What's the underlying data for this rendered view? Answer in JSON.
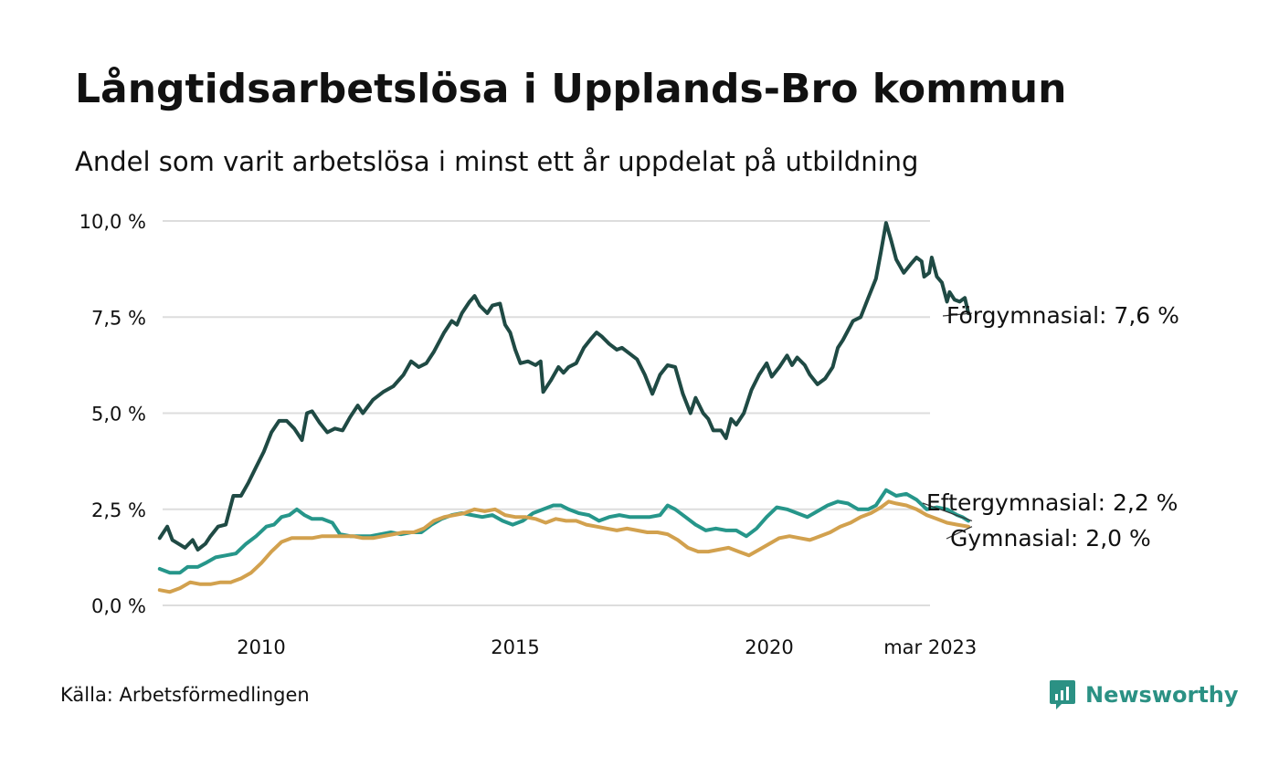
{
  "title": "Långtidsarbetslösa i Upplands-Bro kommun",
  "subtitle": "Andel som varit arbetslösa i minst ett år uppdelat på utbildning",
  "source": "Källa: Arbetsförmedlingen",
  "brand": "Newsworthy",
  "colors": {
    "forgymnasial": "#1f4a44",
    "eftergymnasial": "#26968a",
    "gymnasial": "#d2a14e",
    "grid": "#dddddd",
    "brand": "#2b9184"
  },
  "chart_data": {
    "type": "line",
    "title": "Långtidsarbetslösa i Upplands-Bro kommun",
    "subtitle": "Andel som varit arbetslösa i minst ett år uppdelat på utbildning",
    "xlabel": "",
    "ylabel": "",
    "ylim": [
      0,
      10
    ],
    "xlim": [
      2008.0,
      2023.17
    ],
    "yticks": [
      0,
      2.5,
      5,
      7.5,
      10
    ],
    "ytick_labels": [
      "0,0 %",
      "2,5 %",
      "5,0 %",
      "7,5 %",
      "10,0 %"
    ],
    "xticks": [
      2010,
      2015,
      2020,
      2023.17
    ],
    "xtick_labels": [
      "2010",
      "2015",
      "2020",
      "mar 2023"
    ],
    "grid": true,
    "legend": "direct labels at line ends",
    "series": [
      {
        "name": "Förgymnasial",
        "end_label": "Förgymnasial: 7,6 %",
        "color_key": "forgymnasial",
        "points": [
          [
            2008.0,
            1.75
          ],
          [
            2008.15,
            2.05
          ],
          [
            2008.25,
            1.7
          ],
          [
            2008.5,
            1.5
          ],
          [
            2008.65,
            1.7
          ],
          [
            2008.75,
            1.45
          ],
          [
            2008.9,
            1.6
          ],
          [
            2009.0,
            1.8
          ],
          [
            2009.15,
            2.05
          ],
          [
            2009.3,
            2.1
          ],
          [
            2009.45,
            2.85
          ],
          [
            2009.6,
            2.85
          ],
          [
            2009.75,
            3.2
          ],
          [
            2009.9,
            3.6
          ],
          [
            2010.05,
            4.0
          ],
          [
            2010.2,
            4.5
          ],
          [
            2010.35,
            4.8
          ],
          [
            2010.5,
            4.8
          ],
          [
            2010.65,
            4.6
          ],
          [
            2010.8,
            4.3
          ],
          [
            2010.9,
            5.0
          ],
          [
            2011.0,
            5.05
          ],
          [
            2011.15,
            4.75
          ],
          [
            2011.3,
            4.5
          ],
          [
            2011.45,
            4.6
          ],
          [
            2011.6,
            4.55
          ],
          [
            2011.75,
            4.9
          ],
          [
            2011.9,
            5.2
          ],
          [
            2012.0,
            5.0
          ],
          [
            2012.2,
            5.35
          ],
          [
            2012.4,
            5.55
          ],
          [
            2012.6,
            5.7
          ],
          [
            2012.8,
            6.0
          ],
          [
            2012.95,
            6.35
          ],
          [
            2013.1,
            6.2
          ],
          [
            2013.25,
            6.3
          ],
          [
            2013.4,
            6.6
          ],
          [
            2013.6,
            7.1
          ],
          [
            2013.75,
            7.4
          ],
          [
            2013.85,
            7.3
          ],
          [
            2013.95,
            7.6
          ],
          [
            2014.1,
            7.9
          ],
          [
            2014.2,
            8.05
          ],
          [
            2014.3,
            7.8
          ],
          [
            2014.45,
            7.6
          ],
          [
            2014.55,
            7.8
          ],
          [
            2014.7,
            7.85
          ],
          [
            2014.8,
            7.3
          ],
          [
            2014.9,
            7.1
          ],
          [
            2015.0,
            6.65
          ],
          [
            2015.1,
            6.3
          ],
          [
            2015.25,
            6.35
          ],
          [
            2015.4,
            6.25
          ],
          [
            2015.5,
            6.35
          ],
          [
            2015.55,
            5.55
          ],
          [
            2015.7,
            5.85
          ],
          [
            2015.85,
            6.2
          ],
          [
            2015.95,
            6.05
          ],
          [
            2016.05,
            6.2
          ],
          [
            2016.2,
            6.3
          ],
          [
            2016.35,
            6.7
          ],
          [
            2016.5,
            6.95
          ],
          [
            2016.6,
            7.1
          ],
          [
            2016.7,
            7.0
          ],
          [
            2016.85,
            6.8
          ],
          [
            2017.0,
            6.65
          ],
          [
            2017.1,
            6.7
          ],
          [
            2017.25,
            6.55
          ],
          [
            2017.4,
            6.4
          ],
          [
            2017.55,
            6.0
          ],
          [
            2017.7,
            5.5
          ],
          [
            2017.85,
            6.0
          ],
          [
            2018.0,
            6.25
          ],
          [
            2018.15,
            6.2
          ],
          [
            2018.3,
            5.5
          ],
          [
            2018.45,
            5.0
          ],
          [
            2018.55,
            5.4
          ],
          [
            2018.7,
            5.0
          ],
          [
            2018.8,
            4.85
          ],
          [
            2018.9,
            4.55
          ],
          [
            2019.05,
            4.55
          ],
          [
            2019.15,
            4.35
          ],
          [
            2019.25,
            4.85
          ],
          [
            2019.35,
            4.7
          ],
          [
            2019.5,
            5.0
          ],
          [
            2019.65,
            5.6
          ],
          [
            2019.8,
            6.0
          ],
          [
            2019.95,
            6.3
          ],
          [
            2020.05,
            5.95
          ],
          [
            2020.2,
            6.2
          ],
          [
            2020.35,
            6.5
          ],
          [
            2020.45,
            6.25
          ],
          [
            2020.55,
            6.45
          ],
          [
            2020.7,
            6.25
          ],
          [
            2020.8,
            6.0
          ],
          [
            2020.95,
            5.75
          ],
          [
            2021.1,
            5.9
          ],
          [
            2021.25,
            6.2
          ],
          [
            2021.35,
            6.7
          ],
          [
            2021.45,
            6.9
          ],
          [
            2021.55,
            7.15
          ],
          [
            2021.65,
            7.4
          ],
          [
            2021.8,
            7.5
          ],
          [
            2021.95,
            8.0
          ],
          [
            2022.1,
            8.5
          ],
          [
            2022.2,
            9.2
          ],
          [
            2022.3,
            9.95
          ],
          [
            2022.4,
            9.5
          ],
          [
            2022.5,
            9.0
          ],
          [
            2022.65,
            8.65
          ],
          [
            2022.8,
            8.9
          ],
          [
            2022.9,
            9.05
          ],
          [
            2023.0,
            8.95
          ],
          [
            2023.05,
            8.55
          ],
          [
            2023.15,
            8.65
          ],
          [
            2023.2,
            9.05
          ],
          [
            2023.3,
            8.55
          ],
          [
            2023.4,
            8.4
          ],
          [
            2023.5,
            7.9
          ],
          [
            2023.55,
            8.15
          ],
          [
            2023.65,
            7.95
          ],
          [
            2023.75,
            7.9
          ],
          [
            2023.85,
            8.0
          ],
          [
            2023.92,
            7.6
          ]
        ]
      },
      {
        "name": "Eftergymnasial",
        "end_label": "Eftergymnasial: 2,2 %",
        "color_key": "eftergymnasial",
        "points": [
          [
            2008.0,
            0.95
          ],
          [
            2008.2,
            0.85
          ],
          [
            2008.4,
            0.85
          ],
          [
            2008.55,
            1.0
          ],
          [
            2008.75,
            1.0
          ],
          [
            2008.9,
            1.1
          ],
          [
            2009.1,
            1.25
          ],
          [
            2009.3,
            1.3
          ],
          [
            2009.5,
            1.35
          ],
          [
            2009.7,
            1.6
          ],
          [
            2009.9,
            1.8
          ],
          [
            2010.1,
            2.05
          ],
          [
            2010.25,
            2.1
          ],
          [
            2010.4,
            2.3
          ],
          [
            2010.55,
            2.35
          ],
          [
            2010.7,
            2.5
          ],
          [
            2010.85,
            2.35
          ],
          [
            2011.0,
            2.25
          ],
          [
            2011.2,
            2.25
          ],
          [
            2011.4,
            2.15
          ],
          [
            2011.55,
            1.85
          ],
          [
            2011.75,
            1.8
          ],
          [
            2011.95,
            1.8
          ],
          [
            2012.15,
            1.8
          ],
          [
            2012.35,
            1.85
          ],
          [
            2012.55,
            1.9
          ],
          [
            2012.75,
            1.85
          ],
          [
            2012.95,
            1.9
          ],
          [
            2013.15,
            1.9
          ],
          [
            2013.35,
            2.1
          ],
          [
            2013.55,
            2.25
          ],
          [
            2013.75,
            2.35
          ],
          [
            2013.95,
            2.4
          ],
          [
            2014.15,
            2.35
          ],
          [
            2014.35,
            2.3
          ],
          [
            2014.55,
            2.35
          ],
          [
            2014.75,
            2.2
          ],
          [
            2014.95,
            2.1
          ],
          [
            2015.15,
            2.2
          ],
          [
            2015.35,
            2.4
          ],
          [
            2015.55,
            2.5
          ],
          [
            2015.75,
            2.6
          ],
          [
            2015.9,
            2.6
          ],
          [
            2016.05,
            2.5
          ],
          [
            2016.25,
            2.4
          ],
          [
            2016.45,
            2.35
          ],
          [
            2016.65,
            2.2
          ],
          [
            2016.85,
            2.3
          ],
          [
            2017.05,
            2.35
          ],
          [
            2017.25,
            2.3
          ],
          [
            2017.45,
            2.3
          ],
          [
            2017.65,
            2.3
          ],
          [
            2017.85,
            2.35
          ],
          [
            2018.0,
            2.6
          ],
          [
            2018.15,
            2.5
          ],
          [
            2018.35,
            2.3
          ],
          [
            2018.55,
            2.1
          ],
          [
            2018.75,
            1.95
          ],
          [
            2018.95,
            2.0
          ],
          [
            2019.15,
            1.95
          ],
          [
            2019.35,
            1.95
          ],
          [
            2019.55,
            1.8
          ],
          [
            2019.75,
            2.0
          ],
          [
            2019.95,
            2.3
          ],
          [
            2020.15,
            2.55
          ],
          [
            2020.35,
            2.5
          ],
          [
            2020.55,
            2.4
          ],
          [
            2020.75,
            2.3
          ],
          [
            2020.95,
            2.45
          ],
          [
            2021.15,
            2.6
          ],
          [
            2021.35,
            2.7
          ],
          [
            2021.55,
            2.65
          ],
          [
            2021.75,
            2.5
          ],
          [
            2021.95,
            2.5
          ],
          [
            2022.1,
            2.6
          ],
          [
            2022.3,
            3.0
          ],
          [
            2022.5,
            2.85
          ],
          [
            2022.7,
            2.9
          ],
          [
            2022.9,
            2.75
          ],
          [
            2023.1,
            2.5
          ],
          [
            2023.3,
            2.55
          ],
          [
            2023.5,
            2.5
          ],
          [
            2023.7,
            2.35
          ],
          [
            2023.8,
            2.3
          ],
          [
            2023.92,
            2.2
          ]
        ]
      },
      {
        "name": "Gymnasial",
        "end_label": "Gymnasial: 2,0 %",
        "color_key": "gymnasial",
        "points": [
          [
            2008.0,
            0.4
          ],
          [
            2008.2,
            0.35
          ],
          [
            2008.4,
            0.45
          ],
          [
            2008.6,
            0.6
          ],
          [
            2008.8,
            0.55
          ],
          [
            2009.0,
            0.55
          ],
          [
            2009.2,
            0.6
          ],
          [
            2009.4,
            0.6
          ],
          [
            2009.6,
            0.7
          ],
          [
            2009.8,
            0.85
          ],
          [
            2010.0,
            1.1
          ],
          [
            2010.2,
            1.4
          ],
          [
            2010.4,
            1.65
          ],
          [
            2010.6,
            1.75
          ],
          [
            2010.8,
            1.75
          ],
          [
            2011.0,
            1.75
          ],
          [
            2011.2,
            1.8
          ],
          [
            2011.4,
            1.8
          ],
          [
            2011.6,
            1.8
          ],
          [
            2011.8,
            1.8
          ],
          [
            2012.0,
            1.75
          ],
          [
            2012.2,
            1.75
          ],
          [
            2012.4,
            1.8
          ],
          [
            2012.6,
            1.85
          ],
          [
            2012.8,
            1.9
          ],
          [
            2013.0,
            1.9
          ],
          [
            2013.2,
            2.0
          ],
          [
            2013.4,
            2.2
          ],
          [
            2013.6,
            2.3
          ],
          [
            2013.8,
            2.35
          ],
          [
            2014.0,
            2.4
          ],
          [
            2014.2,
            2.5
          ],
          [
            2014.4,
            2.45
          ],
          [
            2014.6,
            2.5
          ],
          [
            2014.8,
            2.35
          ],
          [
            2015.0,
            2.3
          ],
          [
            2015.2,
            2.3
          ],
          [
            2015.4,
            2.25
          ],
          [
            2015.6,
            2.15
          ],
          [
            2015.8,
            2.25
          ],
          [
            2016.0,
            2.2
          ],
          [
            2016.2,
            2.2
          ],
          [
            2016.4,
            2.1
          ],
          [
            2016.6,
            2.05
          ],
          [
            2016.8,
            2.0
          ],
          [
            2017.0,
            1.95
          ],
          [
            2017.2,
            2.0
          ],
          [
            2017.4,
            1.95
          ],
          [
            2017.6,
            1.9
          ],
          [
            2017.8,
            1.9
          ],
          [
            2018.0,
            1.85
          ],
          [
            2018.2,
            1.7
          ],
          [
            2018.4,
            1.5
          ],
          [
            2018.6,
            1.4
          ],
          [
            2018.8,
            1.4
          ],
          [
            2019.0,
            1.45
          ],
          [
            2019.2,
            1.5
          ],
          [
            2019.4,
            1.4
          ],
          [
            2019.6,
            1.3
          ],
          [
            2019.8,
            1.45
          ],
          [
            2020.0,
            1.6
          ],
          [
            2020.2,
            1.75
          ],
          [
            2020.4,
            1.8
          ],
          [
            2020.6,
            1.75
          ],
          [
            2020.8,
            1.7
          ],
          [
            2021.0,
            1.8
          ],
          [
            2021.2,
            1.9
          ],
          [
            2021.4,
            2.05
          ],
          [
            2021.6,
            2.15
          ],
          [
            2021.8,
            2.3
          ],
          [
            2022.0,
            2.4
          ],
          [
            2022.2,
            2.55
          ],
          [
            2022.35,
            2.7
          ],
          [
            2022.5,
            2.65
          ],
          [
            2022.7,
            2.6
          ],
          [
            2022.9,
            2.5
          ],
          [
            2023.1,
            2.35
          ],
          [
            2023.3,
            2.25
          ],
          [
            2023.5,
            2.15
          ],
          [
            2023.7,
            2.1
          ],
          [
            2023.92,
            2.05
          ]
        ]
      }
    ]
  }
}
